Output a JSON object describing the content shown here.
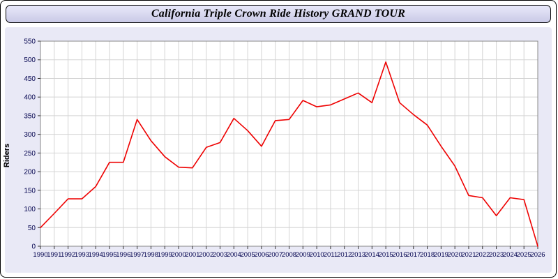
{
  "title": "California Triple Crown Ride History GRAND TOUR",
  "chart_data": {
    "type": "line",
    "title": "California Triple Crown Ride History GRAND TOUR",
    "xlabel": "",
    "ylabel": "Riders",
    "ylim": [
      0,
      550
    ],
    "ytick_step": 50,
    "grid": true,
    "legend_position": "none",
    "line_color": "#ee0000",
    "x": [
      1990,
      1991,
      1992,
      1993,
      1994,
      1995,
      1996,
      1997,
      1998,
      1999,
      2000,
      2001,
      2002,
      2003,
      2004,
      2005,
      2006,
      2007,
      2008,
      2009,
      2010,
      2011,
      2012,
      2013,
      2014,
      2015,
      2016,
      2017,
      2018,
      2019,
      2020,
      2021,
      2022,
      2023,
      2024,
      2025,
      2026
    ],
    "values": [
      50,
      88,
      127,
      127,
      160,
      225,
      225,
      340,
      283,
      240,
      212,
      210,
      265,
      278,
      343,
      310,
      268,
      337,
      340,
      391,
      374,
      379,
      395,
      411,
      385,
      494,
      385,
      353,
      325,
      268,
      215,
      136,
      130,
      82,
      130,
      125,
      0
    ]
  },
  "colors": {
    "panel_background": "#e9e9f6",
    "plot_background": "#ffffff",
    "gridline": "#d4d4d4",
    "axis_border": "#888888",
    "tick_label": "#00004d",
    "line": "#ee0000",
    "title_bar_background": "#d4d4ec"
  }
}
